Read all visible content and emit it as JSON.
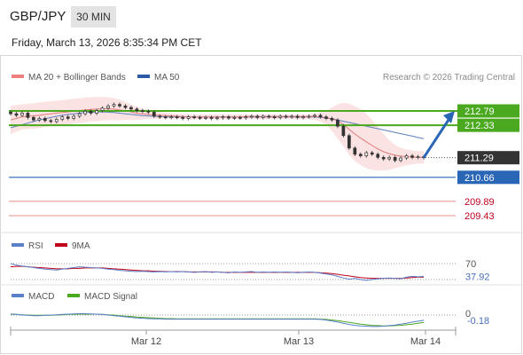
{
  "header": {
    "symbol": "GBP/JPY",
    "timeframe": "30 MIN",
    "datetime": "Friday, March 13, 2026 8:35:34 PM CET"
  },
  "colors": {
    "accent_blue": "#2a66b6",
    "resistance_green": "#4aa91e",
    "support_red": "#e88f8f",
    "price_dark": "#333333",
    "bollinger_fill": "#fbd9d9",
    "rsi_line": "#5b7fc9",
    "ma9_line": "#c0001a",
    "macd_line": "#5b7fc9",
    "macd_signal": "#4aa91e"
  },
  "chart_data": [
    {
      "type": "line",
      "name": "price-panel",
      "legend": [
        {
          "label": "MA 20 + Bollinger Bands",
          "color": "#f08080"
        },
        {
          "label": "MA 50",
          "color": "#2a5aa8"
        }
      ],
      "watermark": "Research © 2026 Trading Central",
      "x_ticks": [
        "Mar 12",
        "Mar 13",
        "Mar 14"
      ],
      "ylim": [
        209.2,
        213.05
      ],
      "levels": [
        {
          "value": 212.79,
          "label": "212.79",
          "kind": "resistance"
        },
        {
          "value": 212.33,
          "label": "212.33",
          "kind": "resistance"
        },
        {
          "value": 211.29,
          "label": "211.29",
          "kind": "last"
        },
        {
          "value": 210.66,
          "label": "210.66",
          "kind": "pivot"
        },
        {
          "value": 209.89,
          "label": "209.89",
          "kind": "support"
        },
        {
          "value": 209.43,
          "label": "209.43",
          "kind": "support"
        }
      ],
      "candles_close": [
        212.7,
        212.65,
        212.72,
        212.58,
        212.5,
        212.55,
        212.48,
        212.45,
        212.52,
        212.6,
        212.55,
        212.62,
        212.7,
        212.78,
        212.72,
        212.8,
        212.88,
        212.95,
        213.0,
        212.95,
        212.9,
        212.85,
        212.8,
        212.78,
        212.75,
        212.62,
        212.6,
        212.58,
        212.6,
        212.58,
        212.55,
        212.6,
        212.58,
        212.56,
        212.58,
        212.55,
        212.57,
        212.6,
        212.56,
        212.58,
        212.57,
        212.6,
        212.62,
        212.58,
        212.62,
        212.6,
        212.58,
        212.62,
        212.6,
        212.62,
        212.58,
        212.6,
        212.62,
        212.65,
        212.6,
        212.55,
        212.5,
        212.3,
        212.0,
        211.6,
        211.4,
        211.35,
        211.45,
        211.4,
        211.3,
        211.25,
        211.3,
        211.2,
        211.28,
        211.35,
        211.3,
        211.32,
        211.29
      ],
      "ma20": [
        212.5,
        212.55,
        212.6,
        212.62,
        212.63,
        212.65,
        212.68,
        212.7,
        212.72,
        212.74,
        212.76,
        212.78,
        212.8,
        212.82,
        212.84,
        212.85,
        212.86,
        212.86,
        212.85,
        212.82,
        212.8,
        212.76,
        212.72,
        212.7,
        212.68,
        212.66,
        212.65,
        212.64,
        212.63,
        212.62,
        212.61,
        212.6,
        212.6,
        212.6,
        212.6,
        212.6,
        212.6,
        212.6,
        212.6,
        212.6,
        212.6,
        212.61,
        212.61,
        212.61,
        212.61,
        212.61,
        212.61,
        212.61,
        212.61,
        212.61,
        212.61,
        212.61,
        212.61,
        212.61,
        212.6,
        212.58,
        212.54,
        212.47,
        212.36,
        212.2,
        212.05,
        211.92,
        211.8,
        211.68,
        211.57,
        211.48,
        211.42,
        211.37,
        211.34,
        211.32,
        211.31,
        211.3,
        211.3
      ],
      "ma50": [
        212.25,
        212.3,
        212.35,
        212.4,
        212.45,
        212.5,
        212.54,
        212.58,
        212.62,
        212.65,
        212.68,
        212.7,
        212.72,
        212.74,
        212.75,
        212.76,
        212.76,
        212.75,
        212.74,
        212.72,
        212.7,
        212.68,
        212.66,
        212.64,
        212.63,
        212.62,
        212.61,
        212.6,
        212.6,
        212.6,
        212.6,
        212.6,
        212.6,
        212.6,
        212.6,
        212.6,
        212.6,
        212.6,
        212.6,
        212.6,
        212.6,
        212.6,
        212.6,
        212.6,
        212.6,
        212.6,
        212.6,
        212.6,
        212.6,
        212.6,
        212.6,
        212.6,
        212.6,
        212.6,
        212.58,
        212.56,
        212.54,
        212.5,
        212.46,
        212.42,
        212.38,
        212.34,
        212.3,
        212.26,
        212.22,
        212.18,
        212.14,
        212.1,
        212.06,
        212.02,
        211.98,
        211.94,
        211.9
      ],
      "bb_upper": [
        212.95,
        212.98,
        213.0,
        213.02,
        213.04,
        213.06,
        213.08,
        213.1,
        213.12,
        213.14,
        213.16,
        213.18,
        213.2,
        213.22,
        213.23,
        213.24,
        213.24,
        213.23,
        213.2,
        213.15,
        213.08,
        213.0,
        212.92,
        212.86,
        212.82,
        212.78,
        212.76,
        212.74,
        212.72,
        212.7,
        212.69,
        212.68,
        212.68,
        212.68,
        212.68,
        212.68,
        212.68,
        212.68,
        212.68,
        212.68,
        212.68,
        212.68,
        212.68,
        212.68,
        212.68,
        212.68,
        212.68,
        212.68,
        212.68,
        212.68,
        212.68,
        212.68,
        212.68,
        212.7,
        212.74,
        212.8,
        212.9,
        213.0,
        213.05,
        213.02,
        212.95,
        212.85,
        212.7,
        212.5,
        212.28,
        212.05,
        211.85,
        211.7,
        211.6,
        211.55,
        211.52,
        211.5,
        211.5
      ],
      "bb_lower": [
        212.05,
        212.12,
        212.2,
        212.22,
        212.22,
        212.24,
        212.28,
        212.3,
        212.32,
        212.34,
        212.36,
        212.38,
        212.4,
        212.42,
        212.45,
        212.46,
        212.48,
        212.49,
        212.5,
        212.49,
        212.5,
        212.5,
        212.5,
        212.52,
        212.54,
        212.54,
        212.54,
        212.54,
        212.54,
        212.54,
        212.53,
        212.52,
        212.52,
        212.52,
        212.52,
        212.52,
        212.52,
        212.52,
        212.52,
        212.52,
        212.52,
        212.52,
        212.52,
        212.52,
        212.52,
        212.52,
        212.52,
        212.52,
        212.52,
        212.52,
        212.52,
        212.52,
        212.52,
        212.5,
        212.45,
        212.35,
        212.15,
        211.9,
        211.65,
        211.38,
        211.18,
        211.05,
        210.95,
        210.9,
        210.88,
        210.88,
        210.9,
        210.95,
        211.0,
        211.05,
        211.08,
        211.1,
        211.1
      ],
      "arrow": {
        "from": 211.29,
        "to": 212.79
      }
    },
    {
      "type": "line",
      "name": "rsi-panel",
      "legend": [
        {
          "label": "RSI",
          "color": "#5b7fc9"
        },
        {
          "label": "9MA",
          "color": "#c0001a"
        }
      ],
      "levels": [
        {
          "value": 70,
          "label": "70"
        },
        {
          "value": 30
        }
      ],
      "last_value_label": "37.92",
      "ylim": [
        0,
        100
      ],
      "rsi": [
        70,
        66,
        64,
        62,
        60,
        58,
        56,
        55,
        54,
        56,
        58,
        60,
        62,
        61,
        60,
        59,
        58,
        56,
        55,
        53,
        52,
        51,
        50,
        51,
        50,
        49,
        50,
        49,
        50,
        49,
        50,
        49,
        48,
        49,
        50,
        48,
        49,
        48,
        47,
        49,
        48,
        49,
        50,
        48,
        49,
        48,
        49,
        48,
        49,
        48,
        47,
        48,
        49,
        48,
        46,
        44,
        42,
        38,
        34,
        31,
        33,
        30,
        28,
        30,
        32,
        33,
        34,
        33,
        32,
        36,
        38,
        37,
        37.92
      ],
      "ma9": [
        62,
        63,
        63,
        62,
        61,
        60,
        59,
        58,
        57,
        57,
        57,
        58,
        58,
        59,
        59,
        59,
        59,
        58,
        57,
        56,
        55,
        54,
        53,
        52,
        52,
        51,
        51,
        50,
        50,
        50,
        50,
        49,
        49,
        49,
        49,
        49,
        49,
        48,
        48,
        48,
        48,
        48,
        48,
        48,
        48,
        48,
        48,
        48,
        48,
        48,
        48,
        48,
        48,
        48,
        47,
        46,
        45,
        43,
        41,
        39,
        37,
        35,
        34,
        33,
        33,
        33,
        33,
        33,
        33,
        34,
        35,
        36,
        36
      ]
    },
    {
      "type": "line",
      "name": "macd-panel",
      "legend": [
        {
          "label": "MACD",
          "color": "#5b7fc9"
        },
        {
          "label": "MACD Signal",
          "color": "#4aa91e"
        }
      ],
      "zero_label": "0",
      "last_value_label": "-0.18",
      "ylim": [
        -0.5,
        0.2
      ],
      "macd": [
        0.04,
        0.02,
        0.0,
        -0.01,
        -0.02,
        -0.02,
        -0.01,
        0.0,
        0.01,
        0.02,
        0.03,
        0.04,
        0.05,
        0.05,
        0.04,
        0.03,
        0.02,
        0.0,
        -0.02,
        -0.04,
        -0.06,
        -0.08,
        -0.1,
        -0.11,
        -0.12,
        -0.13,
        -0.13,
        -0.14,
        -0.14,
        -0.14,
        -0.14,
        -0.14,
        -0.14,
        -0.14,
        -0.14,
        -0.14,
        -0.14,
        -0.14,
        -0.14,
        -0.14,
        -0.14,
        -0.14,
        -0.14,
        -0.14,
        -0.14,
        -0.14,
        -0.14,
        -0.14,
        -0.14,
        -0.14,
        -0.14,
        -0.14,
        -0.14,
        -0.14,
        -0.15,
        -0.17,
        -0.2,
        -0.24,
        -0.28,
        -0.32,
        -0.35,
        -0.37,
        -0.38,
        -0.39,
        -0.39,
        -0.38,
        -0.36,
        -0.34,
        -0.31,
        -0.28,
        -0.24,
        -0.21,
        -0.18
      ],
      "signal": [
        0.02,
        0.02,
        0.01,
        0.0,
        -0.01,
        -0.01,
        -0.01,
        -0.01,
        0.0,
        0.01,
        0.02,
        0.02,
        0.03,
        0.03,
        0.03,
        0.03,
        0.02,
        0.01,
        0.0,
        -0.02,
        -0.04,
        -0.05,
        -0.07,
        -0.08,
        -0.09,
        -0.1,
        -0.11,
        -0.12,
        -0.12,
        -0.13,
        -0.13,
        -0.13,
        -0.13,
        -0.13,
        -0.13,
        -0.13,
        -0.13,
        -0.13,
        -0.13,
        -0.13,
        -0.13,
        -0.13,
        -0.13,
        -0.13,
        -0.13,
        -0.13,
        -0.13,
        -0.13,
        -0.13,
        -0.13,
        -0.13,
        -0.13,
        -0.13,
        -0.13,
        -0.14,
        -0.15,
        -0.17,
        -0.19,
        -0.22,
        -0.25,
        -0.28,
        -0.31,
        -0.33,
        -0.35,
        -0.36,
        -0.37,
        -0.37,
        -0.36,
        -0.35,
        -0.33,
        -0.31,
        -0.28,
        -0.25
      ]
    }
  ]
}
